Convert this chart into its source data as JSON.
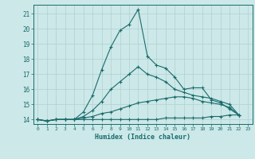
{
  "xlabel": "Humidex (Indice chaleur)",
  "bg_color": "#cce8e8",
  "grid_color": "#b0d0d0",
  "line_color": "#1a6b6b",
  "xlim": [
    -0.5,
    23.5
  ],
  "ylim": [
    13.7,
    21.6
  ],
  "yticks": [
    14,
    15,
    16,
    17,
    18,
    19,
    20,
    21
  ],
  "xticks": [
    0,
    1,
    2,
    3,
    4,
    5,
    6,
    7,
    8,
    9,
    10,
    11,
    12,
    13,
    14,
    15,
    16,
    17,
    18,
    19,
    20,
    21,
    22,
    23
  ],
  "series": [
    [
      14.0,
      13.9,
      14.0,
      14.0,
      14.0,
      14.5,
      15.6,
      17.3,
      18.8,
      19.9,
      20.3,
      21.3,
      18.2,
      17.6,
      17.4,
      16.8,
      16.0,
      16.1,
      16.1,
      15.3,
      15.1,
      14.7,
      14.3
    ],
    [
      14.0,
      13.9,
      14.0,
      14.0,
      14.0,
      14.2,
      14.6,
      15.2,
      16.0,
      16.5,
      17.0,
      17.5,
      17.0,
      16.8,
      16.5,
      16.0,
      15.8,
      15.6,
      15.5,
      15.4,
      15.2,
      15.0,
      14.3
    ],
    [
      14.0,
      13.9,
      14.0,
      14.0,
      14.0,
      14.1,
      14.2,
      14.4,
      14.5,
      14.7,
      14.9,
      15.1,
      15.2,
      15.3,
      15.4,
      15.5,
      15.5,
      15.4,
      15.2,
      15.1,
      15.0,
      14.8,
      14.3
    ],
    [
      14.0,
      13.9,
      14.0,
      14.0,
      14.0,
      14.0,
      14.0,
      14.0,
      14.0,
      14.0,
      14.0,
      14.0,
      14.0,
      14.0,
      14.1,
      14.1,
      14.1,
      14.1,
      14.1,
      14.2,
      14.2,
      14.3,
      14.3
    ]
  ]
}
